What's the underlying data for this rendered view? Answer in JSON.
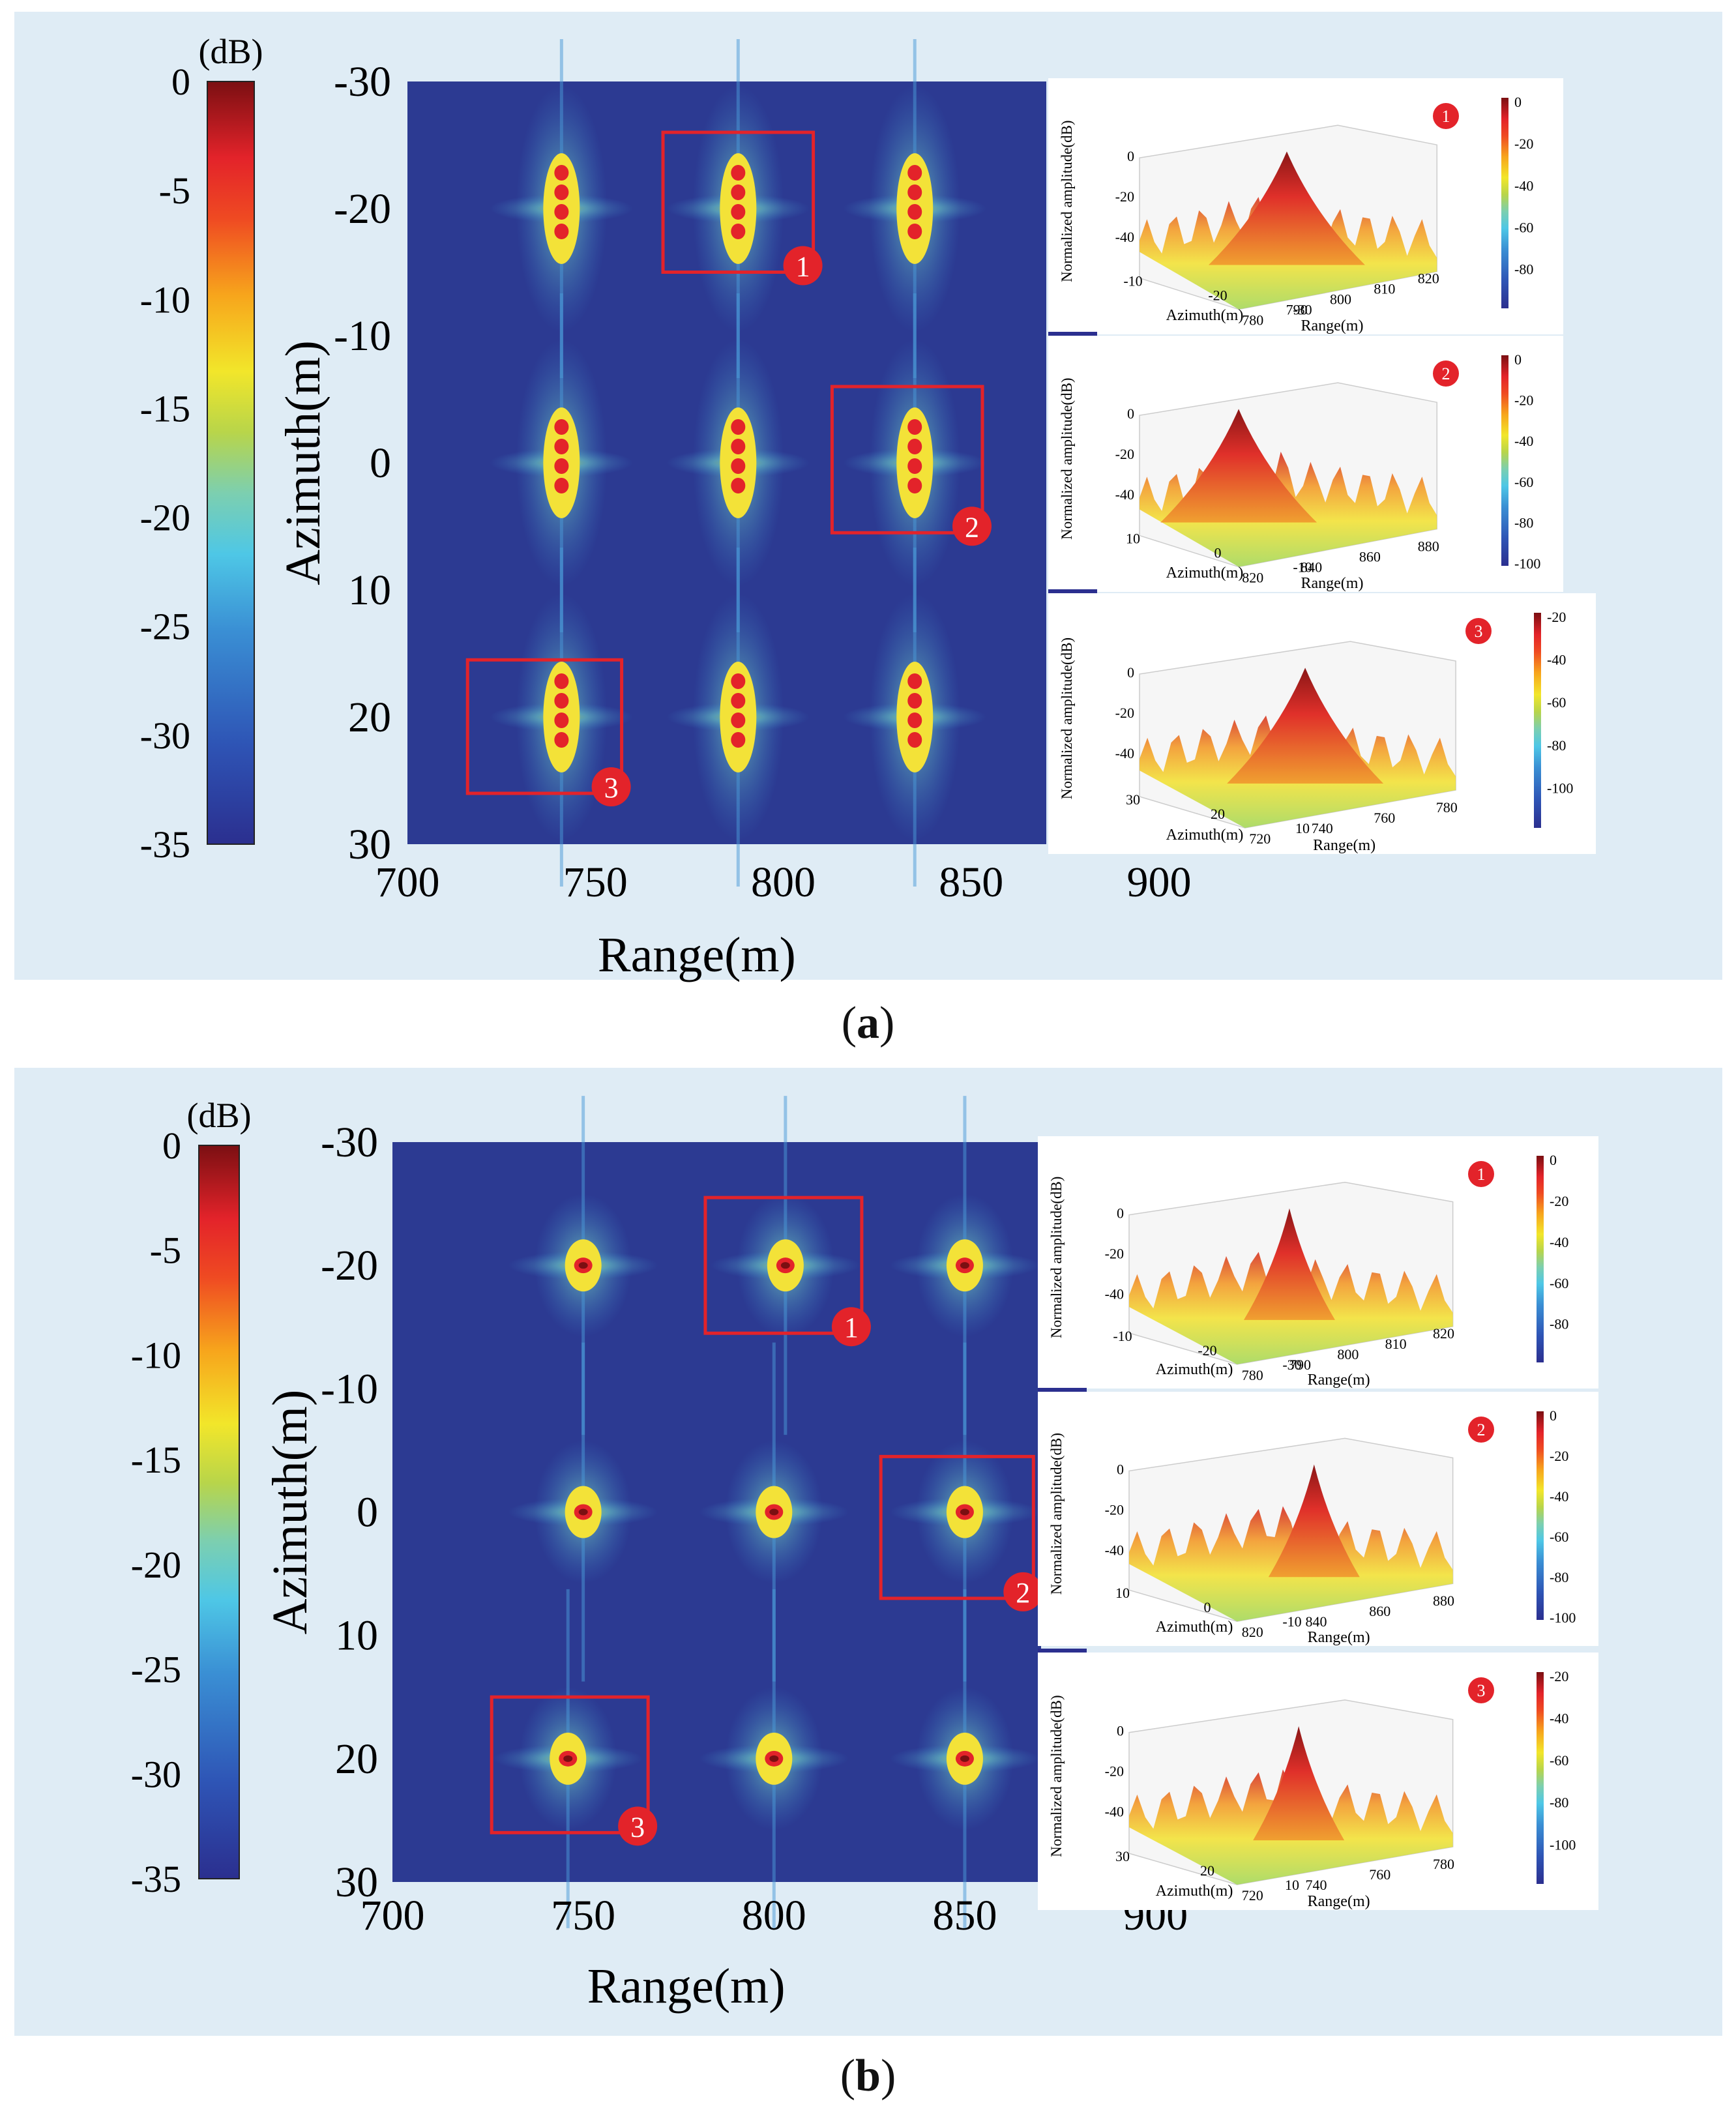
{
  "figure_labels": {
    "a_letter": "a",
    "b_letter": "b"
  },
  "chart_data": [
    {
      "type": "heatmap",
      "panel": "a",
      "xlabel": "Range(m)",
      "ylabel": "Azimuth(m)",
      "xticks": [
        "700",
        "750",
        "800",
        "850",
        "900"
      ],
      "yticks": [
        "-30",
        "-20",
        "-10",
        "0",
        "10",
        "20",
        "30"
      ],
      "xlim": [
        700,
        900
      ],
      "ylim": [
        -30,
        30
      ],
      "colorbar": {
        "unit": "(dB)",
        "ticks": [
          "0",
          "-5",
          "-10",
          "-15",
          "-20",
          "-25",
          "-30",
          "-35"
        ],
        "range": [
          -35,
          0
        ]
      },
      "targets": [
        {
          "range": 741,
          "azimuth": -20
        },
        {
          "range": 788,
          "azimuth": -20
        },
        {
          "range": 835,
          "azimuth": -20
        },
        {
          "range": 741,
          "azimuth": 0
        },
        {
          "range": 788,
          "azimuth": 0
        },
        {
          "range": 835,
          "azimuth": 0
        },
        {
          "range": 741,
          "azimuth": 20
        },
        {
          "range": 788,
          "azimuth": 20
        },
        {
          "range": 835,
          "azimuth": 20
        }
      ],
      "focus": "defocused",
      "callouts": [
        {
          "label": "1",
          "range": [
            768,
            808
          ],
          "azimuth": [
            -26,
            -15
          ]
        },
        {
          "label": "2",
          "range": [
            813,
            853
          ],
          "azimuth": [
            -6,
            5.5
          ]
        },
        {
          "label": "3",
          "range": [
            716,
            757
          ],
          "azimuth": [
            15.5,
            26
          ]
        }
      ],
      "insets": [
        {
          "badge": "1",
          "zlabel": "Normalized amplitude(dB)",
          "xlabel": "Azimuth(m)",
          "ylabel": "Range(m)",
          "zticks": [
            "0",
            "-20",
            "-40"
          ],
          "azticks": [
            "-10",
            "-20",
            "-30"
          ],
          "rgticks": [
            "780",
            "790",
            "800",
            "810",
            "820"
          ],
          "cbticks": [
            "0",
            "-20",
            "-40",
            "-60",
            "-80"
          ]
        },
        {
          "badge": "2",
          "zlabel": "Normalized amplitude(dB)",
          "xlabel": "Azimuth(m)",
          "ylabel": "Range(m)",
          "zticks": [
            "0",
            "-20",
            "-40"
          ],
          "azticks": [
            "10",
            "0",
            "-10"
          ],
          "rgticks": [
            "820",
            "840",
            "860",
            "880"
          ],
          "cbticks": [
            "0",
            "-20",
            "-40",
            "-60",
            "-80",
            "-100"
          ]
        },
        {
          "badge": "3",
          "zlabel": "Normalized amplitude(dB)",
          "xlabel": "Azimuth(m)",
          "ylabel": "Range(m)",
          "zticks": [
            "0",
            "-20",
            "-40"
          ],
          "azticks": [
            "30",
            "20",
            "10"
          ],
          "rgticks": [
            "720",
            "740",
            "760",
            "780"
          ],
          "cbticks": [
            "-20",
            "-40",
            "-60",
            "-80",
            "-100"
          ]
        }
      ]
    },
    {
      "type": "heatmap",
      "panel": "b",
      "xlabel": "Range(m)",
      "ylabel": "Azimuth(m)",
      "xticks": [
        "700",
        "750",
        "800",
        "850",
        "900"
      ],
      "yticks": [
        "-30",
        "-20",
        "-10",
        "0",
        "10",
        "20",
        "30"
      ],
      "xlim": [
        700,
        900
      ],
      "ylim": [
        -30,
        30
      ],
      "colorbar": {
        "unit": "(dB)",
        "ticks": [
          "0",
          "-5",
          "-10",
          "-15",
          "-20",
          "-25",
          "-30",
          "-35"
        ],
        "range": [
          -35,
          0
        ]
      },
      "targets": [
        {
          "range": 750,
          "azimuth": -20
        },
        {
          "range": 803,
          "azimuth": -20
        },
        {
          "range": 850,
          "azimuth": -20
        },
        {
          "range": 750,
          "azimuth": 0
        },
        {
          "range": 800,
          "azimuth": 0
        },
        {
          "range": 850,
          "azimuth": 0
        },
        {
          "range": 746,
          "azimuth": 20
        },
        {
          "range": 800,
          "azimuth": 20
        },
        {
          "range": 850,
          "azimuth": 20
        }
      ],
      "focus": "focused",
      "callouts": [
        {
          "label": "1",
          "range": [
            782,
            823
          ],
          "azimuth": [
            -25.5,
            -14.5
          ]
        },
        {
          "label": "2",
          "range": [
            828,
            868
          ],
          "azimuth": [
            -4.5,
            7
          ]
        },
        {
          "label": "3",
          "range": [
            726,
            767
          ],
          "azimuth": [
            15,
            26
          ]
        }
      ],
      "insets": [
        {
          "badge": "1",
          "zlabel": "Normalized amplitude(dB)",
          "xlabel": "Azimuth(m)",
          "ylabel": "Range(m)",
          "zticks": [
            "0",
            "-20",
            "-40"
          ],
          "azticks": [
            "-10",
            "-20",
            "-30"
          ],
          "rgticks": [
            "780",
            "790",
            "800",
            "810",
            "820"
          ],
          "cbticks": [
            "0",
            "-20",
            "-40",
            "-60",
            "-80"
          ]
        },
        {
          "badge": "2",
          "zlabel": "Normalized amplitude(dB)",
          "xlabel": "Azimuth(m)",
          "ylabel": "Range(m)",
          "zticks": [
            "0",
            "-20",
            "-40"
          ],
          "azticks": [
            "10",
            "0",
            "-10"
          ],
          "rgticks": [
            "820",
            "840",
            "860",
            "880"
          ],
          "cbticks": [
            "0",
            "-20",
            "-40",
            "-60",
            "-80",
            "-100"
          ]
        },
        {
          "badge": "3",
          "zlabel": "Normalized amplitude(dB)",
          "xlabel": "Azimuth(m)",
          "ylabel": "Range(m)",
          "zticks": [
            "0",
            "-20",
            "-40"
          ],
          "azticks": [
            "30",
            "20",
            "10"
          ],
          "rgticks": [
            "720",
            "740",
            "760",
            "780"
          ],
          "cbticks": [
            "-20",
            "-40",
            "-60",
            "-80",
            "-100"
          ]
        }
      ]
    }
  ]
}
